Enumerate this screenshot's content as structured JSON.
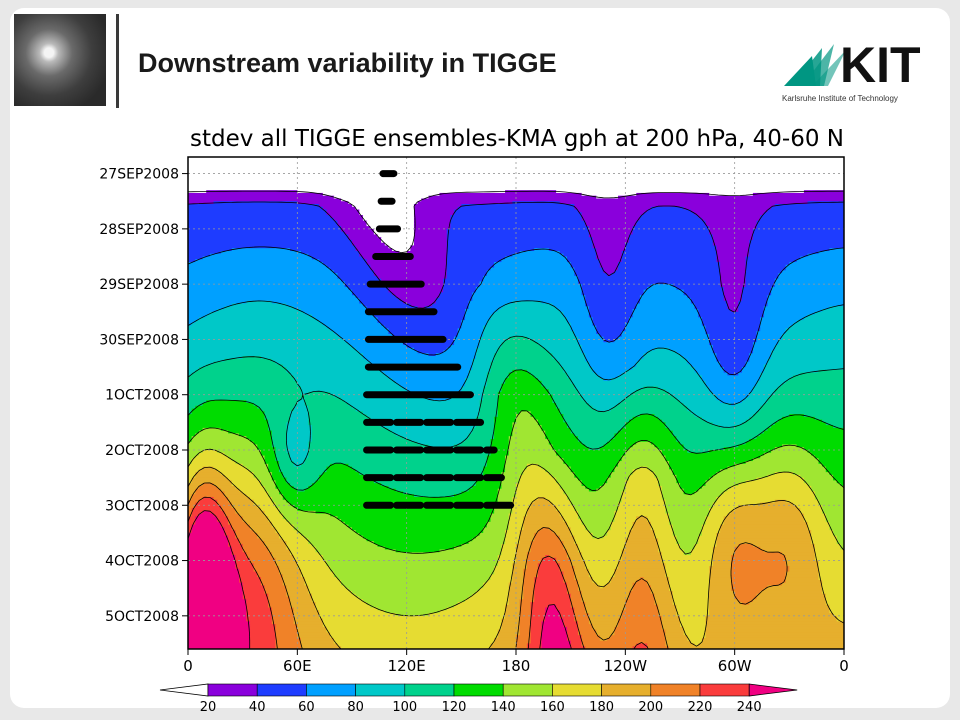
{
  "header": {
    "title": "Downstream variability in TIGGE",
    "logo_text": "KIT",
    "logo_subtitle": "Karlsruhe Institute of Technology"
  },
  "chart_data": {
    "type": "heatmap",
    "title": "stdev all TIGGE ensembles-KMA gph at 200 hPa, 40-60  N",
    "xlabel": "",
    "ylabel": "",
    "x_ticks": [
      "0",
      "60E",
      "120E",
      "180",
      "120W",
      "60W",
      "0"
    ],
    "x_tick_values": [
      0,
      60,
      120,
      180,
      240,
      300,
      360
    ],
    "y_ticks": [
      "27SEP2008",
      "28SEP2008",
      "29SEP2008",
      "30SEP2008",
      "1OCT2008",
      "2OCT2008",
      "3OCT2008",
      "4OCT2008",
      "5OCT2008"
    ],
    "y_tick_values": [
      0,
      1,
      2,
      3,
      4,
      5,
      6,
      7,
      8
    ],
    "xlim": [
      0,
      360
    ],
    "ylim": [
      -0.3,
      8.6
    ],
    "grid": true,
    "legend": "bottom",
    "contour_levels": [
      20,
      40,
      60,
      80,
      100,
      120,
      140,
      160,
      180,
      200,
      220,
      240
    ],
    "color_bands": [
      {
        "min": 0,
        "max": 20,
        "color": "#ffffff"
      },
      {
        "min": 20,
        "max": 40,
        "color": "#8a00dc"
      },
      {
        "min": 40,
        "max": 60,
        "color": "#1e3cff"
      },
      {
        "min": 60,
        "max": 80,
        "color": "#00a0ff"
      },
      {
        "min": 80,
        "max": 100,
        "color": "#00c8c8"
      },
      {
        "min": 100,
        "max": 120,
        "color": "#00d28c"
      },
      {
        "min": 120,
        "max": 140,
        "color": "#00dc00"
      },
      {
        "min": 140,
        "max": 160,
        "color": "#a0e632"
      },
      {
        "min": 160,
        "max": 180,
        "color": "#e6dc32"
      },
      {
        "min": 180,
        "max": 200,
        "color": "#e6af2d"
      },
      {
        "min": 200,
        "max": 220,
        "color": "#f08228"
      },
      {
        "min": 220,
        "max": 240,
        "color": "#fa3c3c"
      },
      {
        "min": 240,
        "max": 260,
        "color": "#f00082"
      }
    ],
    "track_rows": [
      {
        "t": 0,
        "lon_start": 107,
        "lon_end": 113
      },
      {
        "t": 0.5,
        "lon_start": 106,
        "lon_end": 112
      },
      {
        "t": 1,
        "lon_start": 105,
        "lon_end": 115
      },
      {
        "t": 1.5,
        "lon_start": 103,
        "lon_end": 122
      },
      {
        "t": 2,
        "lon_start": 100,
        "lon_end": 128
      },
      {
        "t": 2.5,
        "lon_start": 99,
        "lon_end": 135
      },
      {
        "t": 3,
        "lon_start": 99,
        "lon_end": 140
      },
      {
        "t": 3.5,
        "lon_start": 99,
        "lon_end": 148
      },
      {
        "t": 4,
        "lon_start": 98,
        "lon_end": 155
      },
      {
        "t": 4.5,
        "lon_start": 98,
        "lon_end": 162
      },
      {
        "t": 5,
        "lon_start": 98,
        "lon_end": 168
      },
      {
        "t": 5.5,
        "lon_start": 98,
        "lon_end": 172
      },
      {
        "t": 6,
        "lon_start": 98,
        "lon_end": 178
      }
    ]
  }
}
